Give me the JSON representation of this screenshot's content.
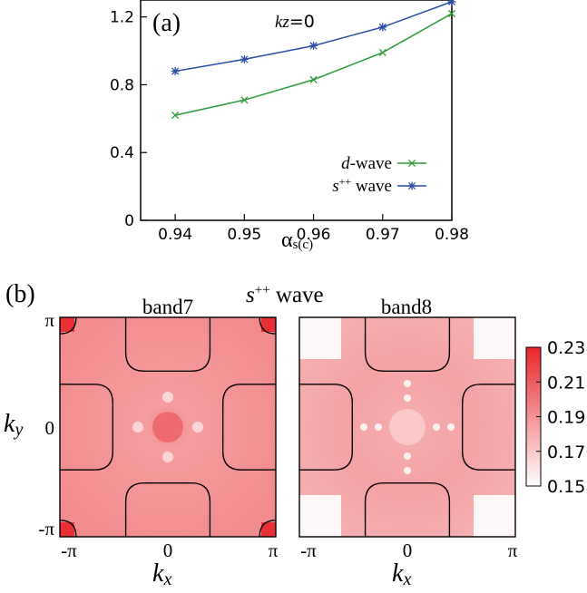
{
  "panel_a": {
    "label": "(a)",
    "annotation_var": "kz",
    "annotation_eq": "=0",
    "xlabel_main": "α",
    "xlabel_sub": "s(c)"
  },
  "panel_b": {
    "label": "(b)",
    "wave_title_prefix": "s",
    "wave_title_sup": "++",
    "wave_title_suffix": " wave",
    "xlabel": "kx",
    "ylabel": "ky"
  },
  "chart_data": [
    {
      "type": "line",
      "x": [
        0.94,
        0.95,
        0.96,
        0.97,
        0.98
      ],
      "xlim": [
        0.935,
        0.98
      ],
      "ylim": [
        0,
        1.3
      ],
      "x_ticks": [
        "0.94",
        "0.95",
        "0.96",
        "0.97",
        "0.98"
      ],
      "y_ticks": [
        "0",
        "0.4",
        "0.8",
        "1.2"
      ],
      "legend_position": "bottom-right",
      "series": [
        {
          "name_italic": "d",
          "name_rest": "-wave",
          "color": "#2e9a3a",
          "marker": "x",
          "values": [
            0.62,
            0.71,
            0.83,
            0.99,
            1.22
          ]
        },
        {
          "name_italic": "s",
          "name_sup": "++",
          "name_rest": " wave",
          "color": "#2a4fa3",
          "marker": "asterisk",
          "values": [
            0.88,
            0.95,
            1.03,
            1.14,
            1.29
          ]
        }
      ]
    },
    {
      "type": "heatmap",
      "panels": [
        {
          "title": "band7",
          "base_value": 0.185,
          "corner_value": 0.23
        },
        {
          "title": "band8",
          "base_value": 0.175,
          "corner_value": 0.15
        }
      ],
      "x_ticks": [
        "-π",
        "0",
        "π"
      ],
      "y_ticks": [
        "π",
        "0",
        "-π"
      ],
      "colorbar": {
        "min": 0.15,
        "max": 0.23,
        "ticks": [
          "0.23",
          "0.21",
          "0.19",
          "0.17",
          "0.15"
        ],
        "color_low": "#ffffff",
        "color_high": "#e8262b"
      }
    }
  ]
}
